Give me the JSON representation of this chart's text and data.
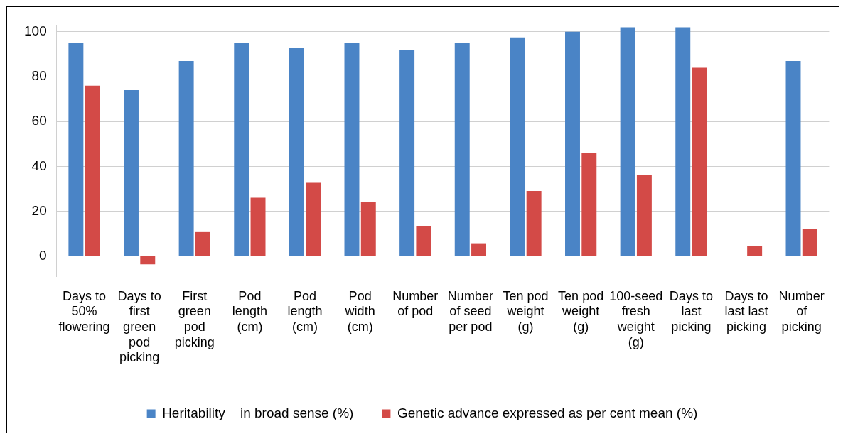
{
  "chart_data": {
    "type": "bar",
    "categories": [
      "Days to 50% flowering",
      "Days to first green pod picking",
      "First green pod picking",
      "Pod length (cm)",
      "Pod length (cm)",
      "Pod width (cm)",
      "Number of pod",
      "Number of seed per pod",
      "Ten pod weight (g)",
      "Ten pod weight (g)",
      "100-seed fresh weight (g)",
      "Days to last picking",
      "Days to last last picking",
      "Number of picking"
    ],
    "series": [
      {
        "name": "Heritability    in broad sense (%)",
        "color": "#4a84c6",
        "values": [
          95,
          74,
          87,
          95,
          93,
          95,
          92,
          95,
          97.5,
          100,
          102,
          102,
          null,
          87
        ]
      },
      {
        "name": "Genetic advance expressed as per cent mean (%)",
        "color": "#d34a47",
        "values": [
          76,
          -3.7,
          11,
          26,
          33,
          24,
          13.5,
          5.7,
          29,
          46,
          36,
          84,
          4.5,
          12
        ]
      }
    ],
    "ylim": [
      -9,
      103
    ],
    "yticks": [
      0,
      20,
      40,
      60,
      80,
      100
    ],
    "grid": "y",
    "legend": "bottom"
  }
}
